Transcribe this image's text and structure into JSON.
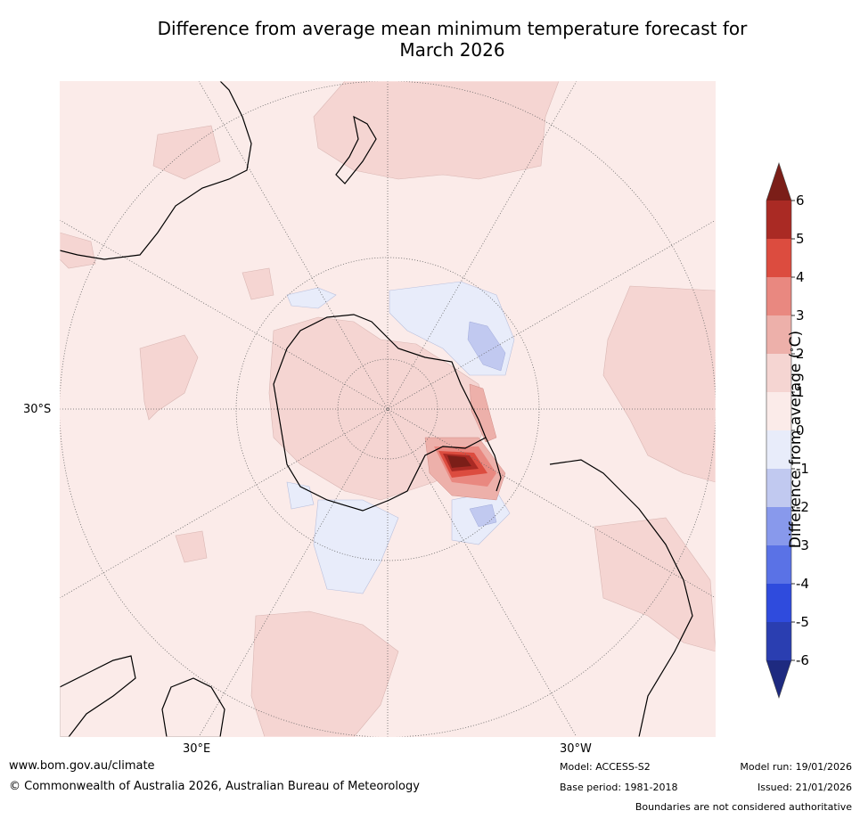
{
  "title_line1": "Difference from average mean minimum temperature forecast for",
  "title_line2": "March 2026",
  "map": {
    "lon_labels": [
      "30°E",
      "30°W"
    ],
    "lat_label": "30°S"
  },
  "colorbar": {
    "label": "Difference from average (°C)",
    "label_main": "Difference from average (",
    "label_unit": "C)",
    "ticks": [
      "6",
      "5",
      "4",
      "3",
      "2",
      "1",
      "0",
      "-1",
      "-2",
      "-3",
      "-4",
      "-5",
      "-6"
    ],
    "colors_top_to_bottom": [
      "#aa2a24",
      "#dc4c3f",
      "#e98880",
      "#edb0aa",
      "#f5d5d2",
      "#fbebe9",
      "#e8ecfa",
      "#c1c9f0",
      "#8899ec",
      "#5a72e6",
      "#2f4bdd",
      "#2a3eb1"
    ],
    "extend_high_color": "#7b1e18",
    "extend_low_color": "#1e2a80"
  },
  "footer": {
    "website": "www.bom.gov.au/climate",
    "copyright": "© Commonwealth of Australia 2026, Australian Bureau of Meteorology",
    "model": "Model: ACCESS-S2",
    "base_period": "Base period: 1981-2018",
    "model_run": "Model run: 19/01/2026",
    "issued": "Issued: 21/01/2026",
    "disclaimer": "Boundaries are not considered authoritative"
  }
}
